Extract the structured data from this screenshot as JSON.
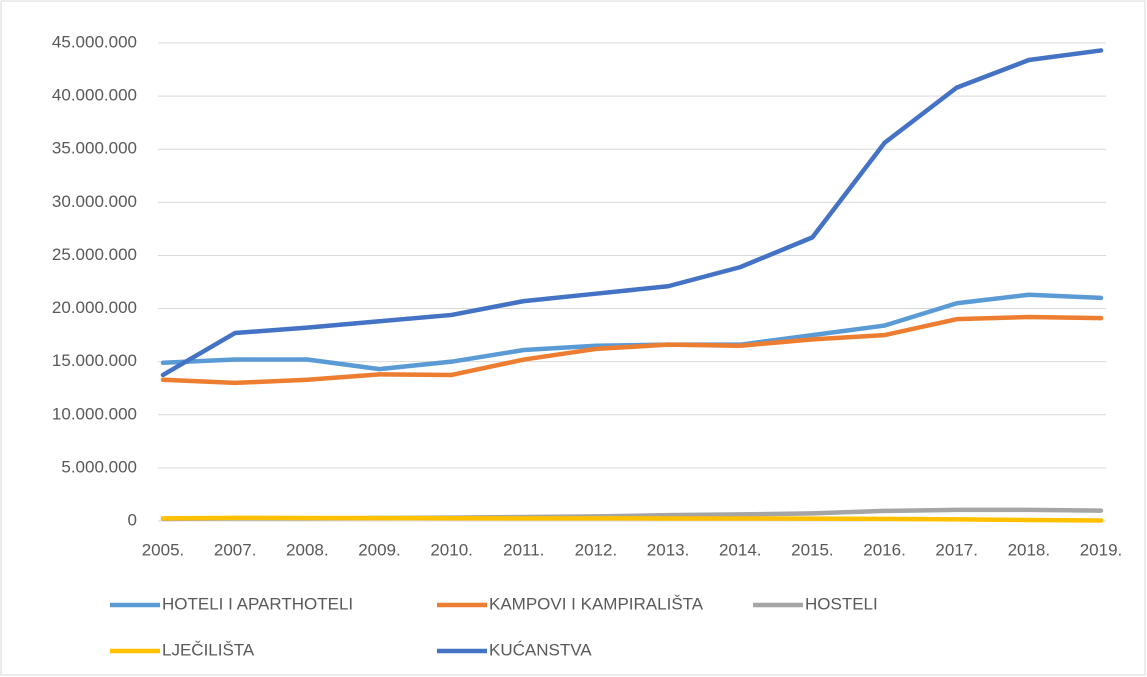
{
  "chart_data": {
    "type": "line",
    "categories": [
      "2005.",
      "2007.",
      "2008.",
      "2009.",
      "2010.",
      "2011.",
      "2012.",
      "2013.",
      "2014.",
      "2015.",
      "2016.",
      "2017.",
      "2018.",
      "2019."
    ],
    "series": [
      {
        "name": "HOTELI I APARTHOTELI",
        "color": "#5b9bd5",
        "values": [
          14900000,
          15200000,
          15200000,
          14300000,
          15000000,
          16100000,
          16500000,
          16600000,
          16600000,
          17500000,
          18400000,
          20500000,
          21300000,
          21000000
        ]
      },
      {
        "name": "KAMPOVI I KAMPIRALIŠTA",
        "color": "#ed7d31",
        "values": [
          13300000,
          13000000,
          13300000,
          13800000,
          13750000,
          15200000,
          16200000,
          16600000,
          16500000,
          17100000,
          17500000,
          19000000,
          19200000,
          19100000
        ]
      },
      {
        "name": "HOSTELI",
        "color": "#a5a5a5",
        "values": [
          200000,
          250000,
          250000,
          280000,
          320000,
          380000,
          430000,
          550000,
          620000,
          720000,
          950000,
          1050000,
          1050000,
          980000
        ]
      },
      {
        "name": "LJEČILIŠTA",
        "color": "#ffc000",
        "values": [
          250000,
          300000,
          280000,
          270000,
          260000,
          250000,
          250000,
          240000,
          240000,
          220000,
          200000,
          150000,
          100000,
          50000
        ]
      },
      {
        "name": "KUĆANSTVA",
        "color": "#4472c4",
        "values": [
          13750000,
          17700000,
          18200000,
          18800000,
          19400000,
          20700000,
          21400000,
          22100000,
          23900000,
          26700000,
          35600000,
          40800000,
          43400000,
          44300000
        ]
      }
    ],
    "ylim": [
      0,
      45000000
    ],
    "yticks": [
      0,
      {
        "value": 5000000,
        "label": "5.000.000"
      },
      {
        "value": 10000000,
        "label": "10.000.000"
      },
      {
        "value": 15000000,
        "label": "15.000.000"
      },
      {
        "value": 20000000,
        "label": "20.000.000"
      },
      {
        "value": 25000000,
        "label": "25.000.000"
      },
      {
        "value": 30000000,
        "label": "30.000.000"
      },
      {
        "value": 35000000,
        "label": "35.000.000"
      },
      {
        "value": 40000000,
        "label": "40.000.000"
      },
      {
        "value": 45000000,
        "label": "45.000.000"
      }
    ],
    "grid": true,
    "legend": "bottom"
  }
}
